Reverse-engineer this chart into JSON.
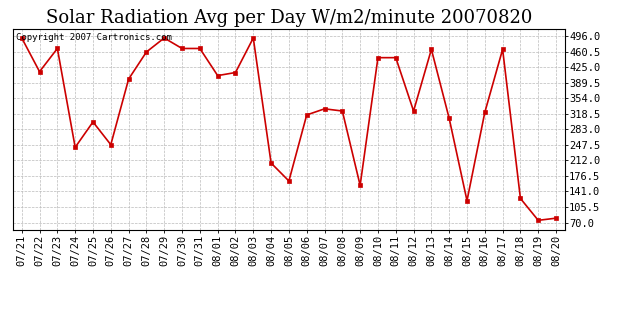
{
  "title": "Solar Radiation Avg per Day W/m2/minute 20070820",
  "copyright": "Copyright 2007 Cartronics.com",
  "dates": [
    "07/21",
    "07/22",
    "07/23",
    "07/24",
    "07/25",
    "07/26",
    "07/27",
    "07/28",
    "07/29",
    "07/30",
    "07/31",
    "08/01",
    "08/02",
    "08/03",
    "08/04",
    "08/05",
    "08/06",
    "08/07",
    "08/08",
    "08/09",
    "08/10",
    "08/11",
    "08/12",
    "08/13",
    "08/14",
    "08/15",
    "08/16",
    "08/17",
    "08/18",
    "08/19",
    "08/20"
  ],
  "values": [
    492,
    415,
    468,
    242,
    300,
    248,
    398,
    460,
    492,
    468,
    468,
    406,
    413,
    492,
    206,
    165,
    316,
    330,
    325,
    155,
    447,
    447,
    325,
    466,
    308,
    120,
    322,
    466,
    125,
    75,
    80
  ],
  "line_color": "#cc0000",
  "marker_color": "#cc0000",
  "bg_color": "#ffffff",
  "grid_color": "#bbbbbb",
  "yticks": [
    70.0,
    105.5,
    141.0,
    176.5,
    212.0,
    247.5,
    283.0,
    318.5,
    354.0,
    389.5,
    425.0,
    460.5,
    496.0
  ],
  "ylim": [
    52,
    513
  ],
  "title_fontsize": 13,
  "tick_fontsize": 7.5,
  "copyright_fontsize": 6.5
}
